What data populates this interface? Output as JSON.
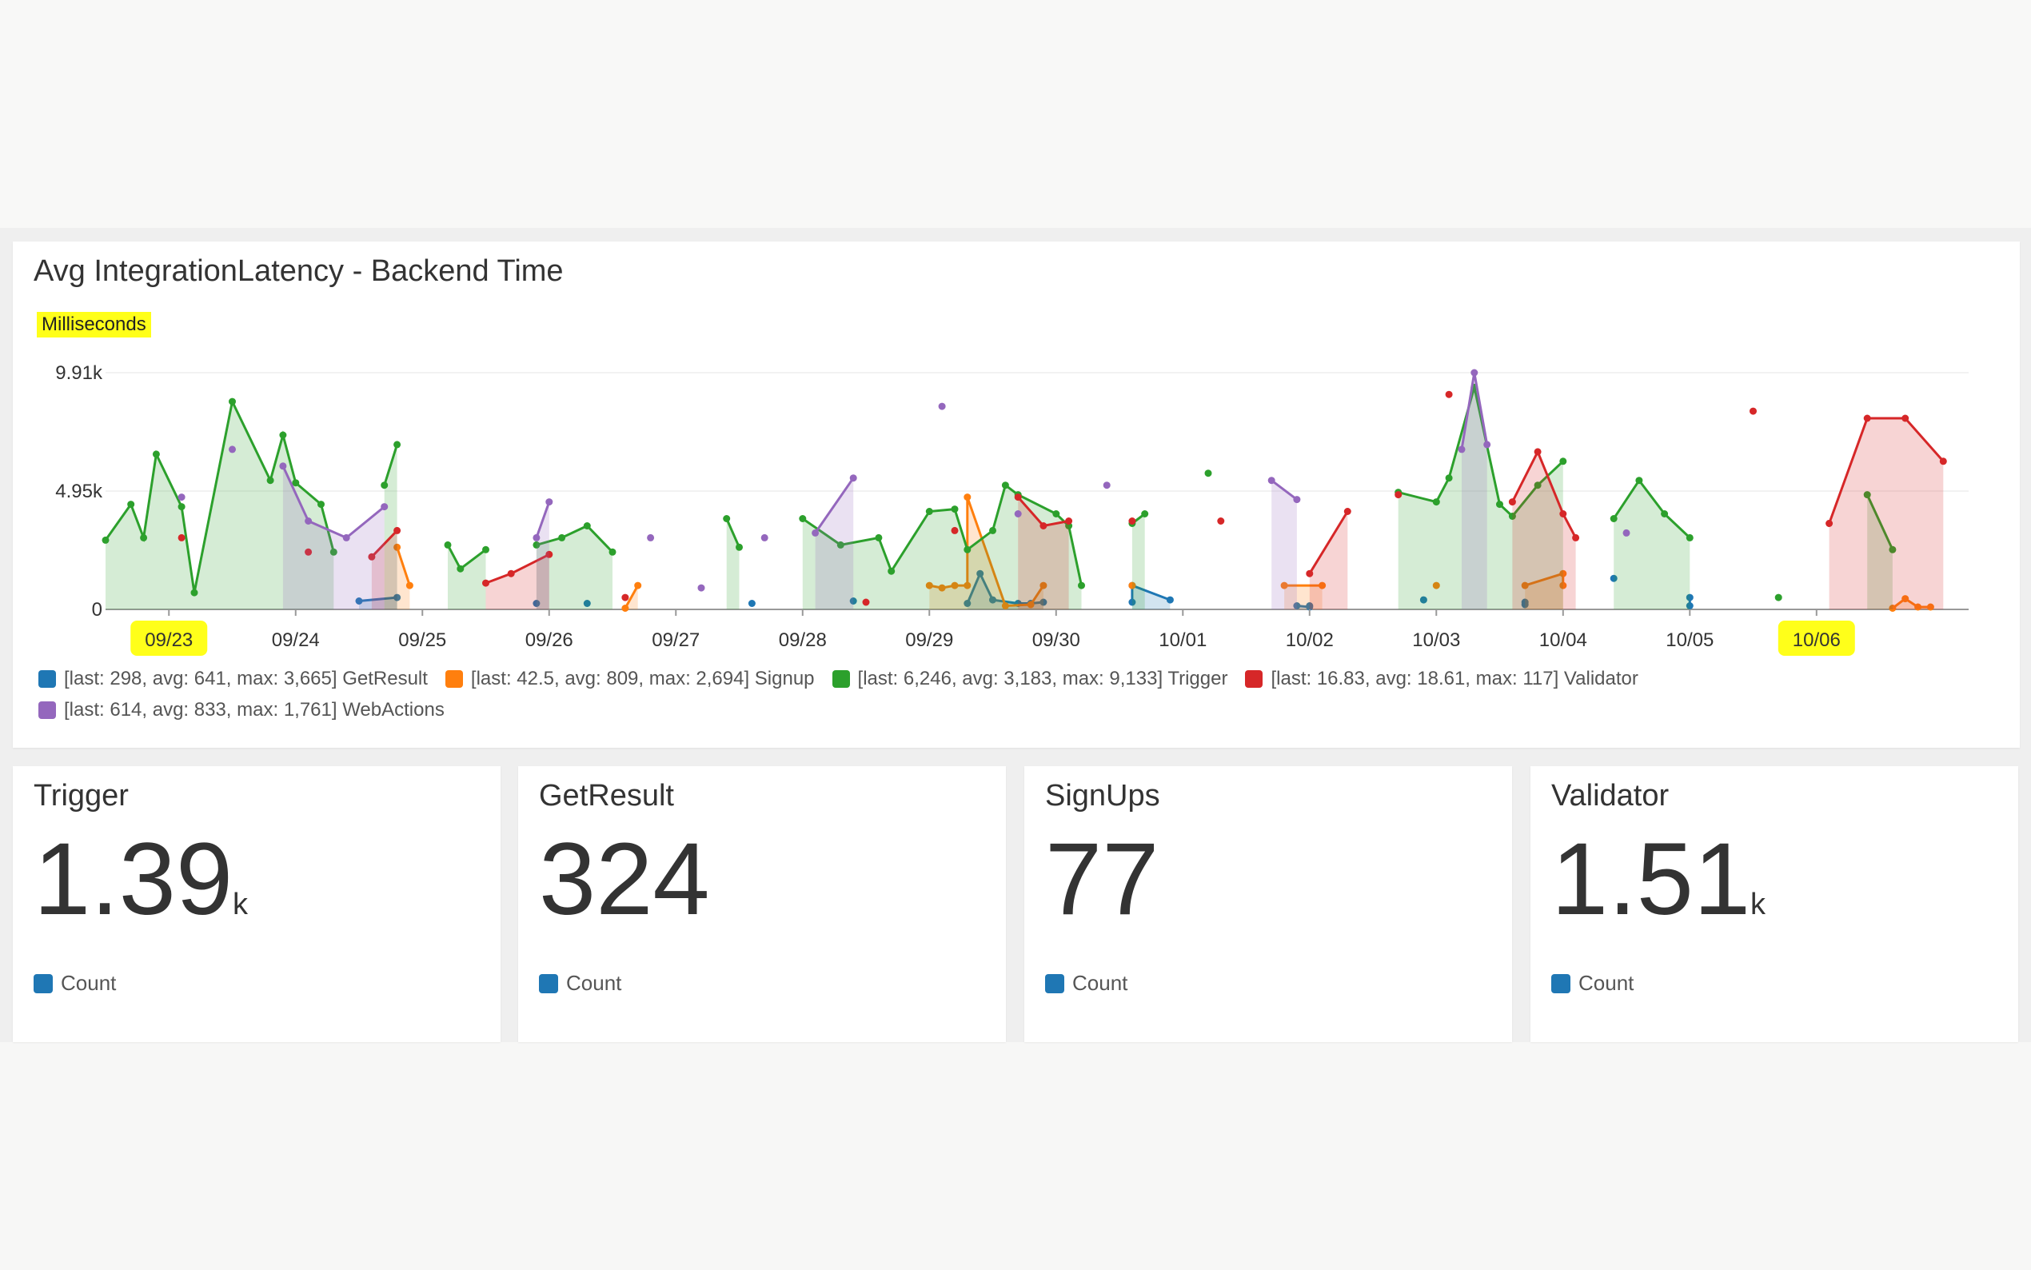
{
  "colors": {
    "GetResult": "#1f77b4",
    "Signup": "#ff7f0e",
    "Trigger": "#2ca02c",
    "Validator": "#d62728",
    "WebActions": "#9467bd",
    "highlight": "#ffff1a"
  },
  "chart_panel": {
    "title": "Avg IntegrationLatency - Backend Time",
    "unit_label": "Milliseconds"
  },
  "chart_data": {
    "type": "line",
    "title": "Avg IntegrationLatency - Backend Time",
    "ylabel": "Milliseconds",
    "y_ticks": [
      "9.91k",
      "4.95k",
      "0"
    ],
    "ylim": [
      0,
      9910
    ],
    "x_ticks": [
      "09/23",
      "09/24",
      "09/25",
      "09/26",
      "09/27",
      "09/28",
      "09/29",
      "09/30",
      "10/01",
      "10/02",
      "10/03",
      "10/04",
      "10/05",
      "10/06"
    ],
    "highlighted_ticks": [
      "09/23",
      "10/06"
    ],
    "xlim": [
      0,
      14.7
    ],
    "series": [
      {
        "name": "GetResult",
        "legend": "[last: 298, avg: 641, max: 3,665] GetResult",
        "points": [
          [
            2.0,
            350
          ],
          [
            2.3,
            500
          ],
          [
            3.4,
            250
          ],
          [
            3.8,
            250
          ],
          [
            5.1,
            250
          ],
          [
            5.9,
            350
          ],
          [
            6.8,
            250
          ],
          [
            6.9,
            1500
          ],
          [
            7.0,
            400
          ],
          [
            7.2,
            250
          ],
          [
            7.3,
            250
          ],
          [
            7.4,
            300
          ],
          [
            8.1,
            300
          ],
          [
            8.1,
            1000
          ],
          [
            8.4,
            400
          ],
          [
            9.4,
            150
          ],
          [
            9.5,
            100
          ],
          [
            9.5,
            150
          ],
          [
            10.4,
            400
          ],
          [
            11.2,
            200
          ],
          [
            11.2,
            300
          ],
          [
            11.9,
            1300
          ],
          [
            12.5,
            500
          ],
          [
            12.5,
            150
          ]
        ]
      },
      {
        "name": "Signup",
        "legend": "[last: 42.5, avg: 809, max: 2,694] Signup",
        "points": [
          [
            2.3,
            2600
          ],
          [
            2.4,
            1000
          ],
          [
            4.1,
            50
          ],
          [
            4.2,
            1000
          ],
          [
            6.5,
            1000
          ],
          [
            6.6,
            900
          ],
          [
            6.7,
            1000
          ],
          [
            6.8,
            1000
          ],
          [
            6.8,
            4700
          ],
          [
            7.1,
            150
          ],
          [
            7.3,
            200
          ],
          [
            7.4,
            1000
          ],
          [
            8.1,
            1000
          ],
          [
            9.3,
            1000
          ],
          [
            9.6,
            1000
          ],
          [
            10.5,
            1000
          ],
          [
            11.2,
            1000
          ],
          [
            11.5,
            1500
          ],
          [
            11.5,
            1000
          ],
          [
            14.1,
            50
          ],
          [
            14.2,
            450
          ],
          [
            14.3,
            100
          ],
          [
            14.4,
            100
          ]
        ]
      },
      {
        "name": "Trigger",
        "legend": "[last: 6,246, avg: 3,183, max: 9,133] Trigger",
        "points": [
          [
            0.0,
            2900
          ],
          [
            0.2,
            4400
          ],
          [
            0.3,
            3000
          ],
          [
            0.4,
            6500
          ],
          [
            0.6,
            4300
          ],
          [
            0.7,
            700
          ],
          [
            1.0,
            8700
          ],
          [
            1.3,
            5400
          ],
          [
            1.4,
            7300
          ],
          [
            1.5,
            5300
          ],
          [
            1.7,
            4400
          ],
          [
            1.8,
            2400
          ],
          [
            2.2,
            5200
          ],
          [
            2.3,
            6900
          ],
          [
            2.7,
            2700
          ],
          [
            2.8,
            1700
          ],
          [
            3.0,
            2500
          ],
          [
            3.4,
            2700
          ],
          [
            3.6,
            3000
          ],
          [
            3.8,
            3500
          ],
          [
            4.0,
            2400
          ],
          [
            4.9,
            3800
          ],
          [
            5.0,
            2600
          ],
          [
            5.5,
            3800
          ],
          [
            5.8,
            2700
          ],
          [
            6.1,
            3000
          ],
          [
            6.2,
            1600
          ],
          [
            6.5,
            4100
          ],
          [
            6.7,
            4200
          ],
          [
            6.8,
            2500
          ],
          [
            7.0,
            3300
          ],
          [
            7.1,
            5200
          ],
          [
            7.2,
            4800
          ],
          [
            7.5,
            4000
          ],
          [
            7.6,
            3500
          ],
          [
            7.7,
            1000
          ],
          [
            8.1,
            3600
          ],
          [
            8.2,
            4000
          ],
          [
            8.7,
            5700
          ],
          [
            10.2,
            4900
          ],
          [
            10.5,
            4500
          ],
          [
            10.6,
            5500
          ],
          [
            10.8,
            9300
          ],
          [
            11.0,
            4400
          ],
          [
            11.1,
            3900
          ],
          [
            11.3,
            5200
          ],
          [
            11.5,
            6200
          ],
          [
            11.9,
            3800
          ],
          [
            12.1,
            5400
          ],
          [
            12.3,
            4000
          ],
          [
            12.5,
            3000
          ],
          [
            13.2,
            500
          ],
          [
            13.9,
            4800
          ],
          [
            14.1,
            2500
          ]
        ]
      },
      {
        "name": "Validator",
        "legend": "[last: 16.83, avg: 18.61, max: 117] Validator",
        "points": [
          [
            0.6,
            3000
          ],
          [
            1.6,
            2400
          ],
          [
            2.1,
            2200
          ],
          [
            2.3,
            3300
          ],
          [
            3.0,
            1100
          ],
          [
            3.2,
            1500
          ],
          [
            3.5,
            2300
          ],
          [
            4.1,
            500
          ],
          [
            6.0,
            300
          ],
          [
            6.7,
            3300
          ],
          [
            7.2,
            4700
          ],
          [
            7.4,
            3500
          ],
          [
            7.6,
            3700
          ],
          [
            8.1,
            3700
          ],
          [
            8.8,
            3700
          ],
          [
            9.5,
            1500
          ],
          [
            9.8,
            4100
          ],
          [
            10.2,
            4800
          ],
          [
            10.6,
            9000
          ],
          [
            11.1,
            4500
          ],
          [
            11.3,
            6600
          ],
          [
            11.5,
            4000
          ],
          [
            11.6,
            3000
          ],
          [
            13.0,
            8300
          ],
          [
            13.6,
            3600
          ],
          [
            13.9,
            8000
          ],
          [
            14.2,
            8000
          ],
          [
            14.5,
            6200
          ]
        ]
      },
      {
        "name": "WebActions",
        "legend": "[last: 614, avg: 833, max: 1,761] WebActions",
        "points": [
          [
            0.6,
            4700
          ],
          [
            1.0,
            6700
          ],
          [
            1.4,
            6000
          ],
          [
            1.6,
            3700
          ],
          [
            1.9,
            3000
          ],
          [
            2.2,
            4300
          ],
          [
            3.4,
            3000
          ],
          [
            3.5,
            4500
          ],
          [
            4.3,
            3000
          ],
          [
            4.7,
            900
          ],
          [
            5.2,
            3000
          ],
          [
            5.6,
            3200
          ],
          [
            5.9,
            5500
          ],
          [
            6.6,
            8500
          ],
          [
            7.2,
            4000
          ],
          [
            7.9,
            5200
          ],
          [
            9.2,
            5400
          ],
          [
            9.4,
            4600
          ],
          [
            10.7,
            6700
          ],
          [
            10.8,
            9910
          ],
          [
            10.9,
            6900
          ],
          [
            12.0,
            3200
          ]
        ]
      }
    ]
  },
  "stats": [
    {
      "title": "Trigger",
      "value": "1.39",
      "unit": "k",
      "legend": "Count"
    },
    {
      "title": "GetResult",
      "value": "324",
      "unit": "",
      "legend": "Count"
    },
    {
      "title": "SignUps",
      "value": "77",
      "unit": "",
      "legend": "Count"
    },
    {
      "title": "Validator",
      "value": "1.51",
      "unit": "k",
      "legend": "Count"
    }
  ]
}
